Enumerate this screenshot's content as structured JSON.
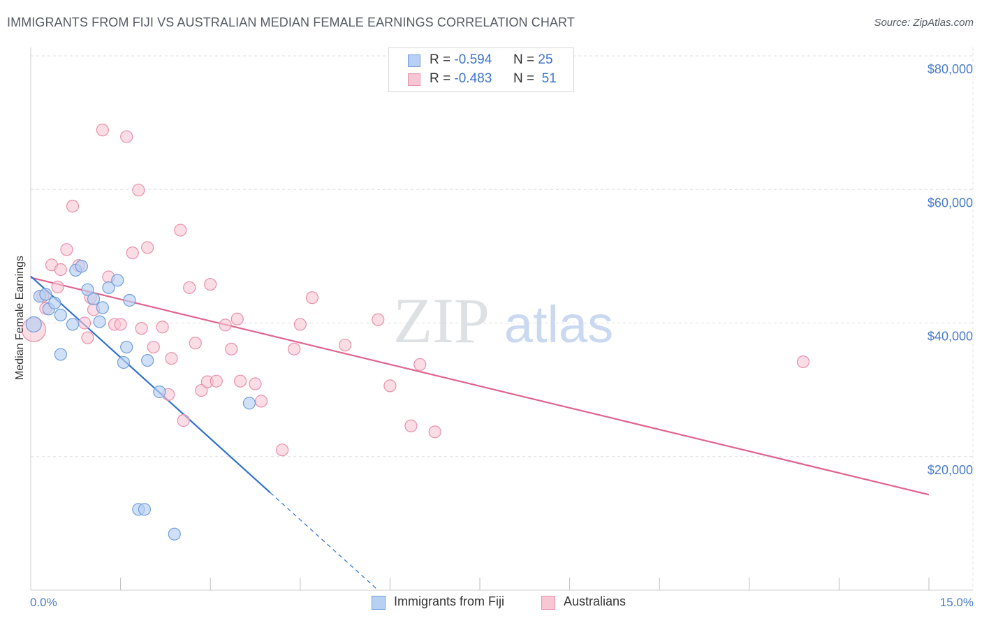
{
  "header": {
    "title": "IMMIGRANTS FROM FIJI VS AUSTRALIAN MEDIAN FEMALE EARNINGS CORRELATION CHART",
    "source": "Source: ZipAtlas.com"
  },
  "watermark": {
    "zip": "ZIP",
    "atlas": "atlas"
  },
  "legend": {
    "rows": [
      {
        "r_label": "R =",
        "r_value": "-0.594",
        "n_label": "N =",
        "n_value": "25"
      },
      {
        "r_label": "R =",
        "r_value": "-0.483",
        "n_label": "N =",
        "n_value": "51"
      }
    ]
  },
  "bottom_legend": {
    "series1": "Immigrants from Fiji",
    "series2": "Australians"
  },
  "colors": {
    "fiji_fill": "#b7d0f3",
    "fiji_stroke": "#6f9edb",
    "fiji_line": "#2e6fd1",
    "aus_fill": "#f9c6d4",
    "aus_stroke": "#e890ab",
    "aus_line": "#e0648d",
    "axis_text": "#4a7cc9",
    "grid": "#dedede"
  },
  "chart_data": {
    "type": "scatter",
    "title": "IMMIGRANTS FROM FIJI VS AUSTRALIAN MEDIAN FEMALE EARNINGS CORRELATION CHART",
    "xlabel": "",
    "ylabel": "Median Female Earnings",
    "xlim": [
      0,
      15
    ],
    "ylim": [
      0,
      80000
    ],
    "x_tick_labels": [
      "0.0%",
      "15.0%"
    ],
    "y_ticks": [
      20000,
      40000,
      60000,
      80000
    ],
    "y_tick_labels": [
      "$20,000",
      "$40,000",
      "$60,000",
      "$80,000"
    ],
    "grid": true,
    "legend_position": "top-center",
    "series": [
      {
        "name": "Immigrants from Fiji",
        "r": -0.594,
        "n": 25,
        "points": [
          {
            "x": 0.05,
            "y": 39800
          },
          {
            "x": 0.15,
            "y": 44000
          },
          {
            "x": 0.25,
            "y": 44300
          },
          {
            "x": 0.3,
            "y": 42100
          },
          {
            "x": 0.4,
            "y": 43000
          },
          {
            "x": 0.5,
            "y": 41200
          },
          {
            "x": 0.5,
            "y": 35300
          },
          {
            "x": 0.7,
            "y": 39800
          },
          {
            "x": 0.75,
            "y": 47900
          },
          {
            "x": 0.85,
            "y": 48500
          },
          {
            "x": 0.95,
            "y": 45000
          },
          {
            "x": 1.05,
            "y": 43600
          },
          {
            "x": 1.15,
            "y": 40200
          },
          {
            "x": 1.2,
            "y": 42300
          },
          {
            "x": 1.3,
            "y": 45300
          },
          {
            "x": 1.45,
            "y": 46400
          },
          {
            "x": 1.55,
            "y": 34100
          },
          {
            "x": 1.6,
            "y": 36400
          },
          {
            "x": 1.65,
            "y": 43400
          },
          {
            "x": 1.8,
            "y": 12100
          },
          {
            "x": 1.9,
            "y": 12100
          },
          {
            "x": 1.95,
            "y": 34400
          },
          {
            "x": 2.15,
            "y": 29700
          },
          {
            "x": 2.4,
            "y": 8400
          },
          {
            "x": 3.65,
            "y": 28000
          }
        ],
        "trend": {
          "x1": 0,
          "y1": 47000,
          "x2": 4.0,
          "y2": 14600,
          "dash_to_x": 5.8
        }
      },
      {
        "name": "Australians",
        "r": -0.483,
        "n": 51,
        "points": [
          {
            "x": 0.05,
            "y": 39000
          },
          {
            "x": 0.2,
            "y": 44000
          },
          {
            "x": 0.25,
            "y": 42200
          },
          {
            "x": 0.35,
            "y": 48700
          },
          {
            "x": 0.45,
            "y": 45400
          },
          {
            "x": 0.5,
            "y": 48000
          },
          {
            "x": 0.6,
            "y": 51000
          },
          {
            "x": 0.7,
            "y": 57500
          },
          {
            "x": 0.8,
            "y": 48600
          },
          {
            "x": 0.9,
            "y": 40000
          },
          {
            "x": 0.95,
            "y": 37800
          },
          {
            "x": 1.0,
            "y": 43800
          },
          {
            "x": 1.05,
            "y": 42000
          },
          {
            "x": 1.2,
            "y": 68900
          },
          {
            "x": 1.3,
            "y": 46900
          },
          {
            "x": 1.4,
            "y": 39800
          },
          {
            "x": 1.5,
            "y": 39800
          },
          {
            "x": 1.6,
            "y": 67900
          },
          {
            "x": 1.7,
            "y": 50500
          },
          {
            "x": 1.8,
            "y": 59900
          },
          {
            "x": 1.85,
            "y": 39200
          },
          {
            "x": 1.95,
            "y": 51300
          },
          {
            "x": 2.05,
            "y": 36400
          },
          {
            "x": 2.2,
            "y": 39400
          },
          {
            "x": 2.3,
            "y": 29300
          },
          {
            "x": 2.35,
            "y": 34700
          },
          {
            "x": 2.5,
            "y": 53900
          },
          {
            "x": 2.55,
            "y": 25400
          },
          {
            "x": 2.65,
            "y": 45300
          },
          {
            "x": 2.75,
            "y": 37000
          },
          {
            "x": 2.85,
            "y": 29900
          },
          {
            "x": 2.95,
            "y": 31200
          },
          {
            "x": 3.0,
            "y": 45800
          },
          {
            "x": 3.1,
            "y": 31300
          },
          {
            "x": 3.25,
            "y": 39700
          },
          {
            "x": 3.35,
            "y": 36100
          },
          {
            "x": 3.45,
            "y": 40600
          },
          {
            "x": 3.5,
            "y": 31300
          },
          {
            "x": 3.75,
            "y": 30900
          },
          {
            "x": 3.85,
            "y": 28300
          },
          {
            "x": 4.2,
            "y": 21000
          },
          {
            "x": 4.4,
            "y": 36100
          },
          {
            "x": 4.5,
            "y": 39800
          },
          {
            "x": 4.7,
            "y": 43800
          },
          {
            "x": 5.25,
            "y": 36700
          },
          {
            "x": 5.8,
            "y": 40500
          },
          {
            "x": 6.0,
            "y": 30600
          },
          {
            "x": 6.35,
            "y": 24600
          },
          {
            "x": 6.5,
            "y": 33800
          },
          {
            "x": 6.75,
            "y": 23700
          },
          {
            "x": 12.9,
            "y": 34200
          }
        ],
        "trend": {
          "x1": 0,
          "y1": 46800,
          "x2": 15,
          "y2": 14300
        }
      }
    ]
  }
}
